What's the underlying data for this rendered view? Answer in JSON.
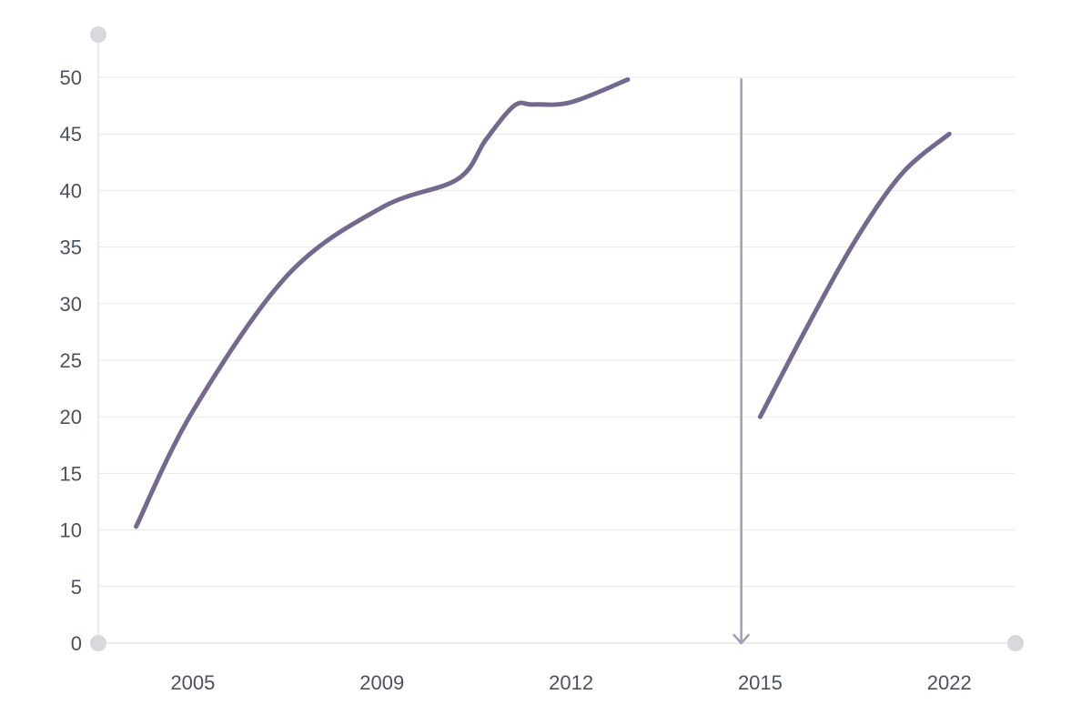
{
  "chart_data": {
    "type": "line",
    "title": "",
    "xlabel": "",
    "ylabel": "",
    "x_categories": [
      "2005",
      "2009",
      "2012",
      "2015",
      "2022"
    ],
    "ylim": [
      0,
      50
    ],
    "y_ticks": [
      "0",
      "5",
      "10",
      "15",
      "20",
      "25",
      "30",
      "35",
      "40",
      "45",
      "50"
    ],
    "grid": "horizontal",
    "legend": "none",
    "series": [
      {
        "color": "#74688f",
        "segments": [
          [
            {
              "x": 0.4,
              "y": 10.3
            },
            {
              "x": 1.0,
              "y": 20.5
            },
            {
              "x": 2.0,
              "y": 32.5
            },
            {
              "x": 3.0,
              "y": 38.5
            },
            {
              "x": 3.8,
              "y": 41.0
            },
            {
              "x": 4.1,
              "y": 44.5
            },
            {
              "x": 4.4,
              "y": 47.5
            },
            {
              "x": 4.6,
              "y": 47.6
            },
            {
              "x": 5.0,
              "y": 47.8
            },
            {
              "x": 5.6,
              "y": 49.8
            }
          ],
          [
            {
              "x": 7.0,
              "y": 20.0
            },
            {
              "x": 7.5,
              "y": 28.0
            },
            {
              "x": 8.0,
              "y": 35.5
            },
            {
              "x": 8.5,
              "y": 41.5
            },
            {
              "x": 9.0,
              "y": 45.0
            }
          ]
        ]
      }
    ],
    "annotations": [
      {
        "type": "vertical-arrow",
        "x": 6.8,
        "y_from": 50,
        "y_to": 0,
        "direction": "down",
        "color": "#a29eb3"
      }
    ]
  }
}
